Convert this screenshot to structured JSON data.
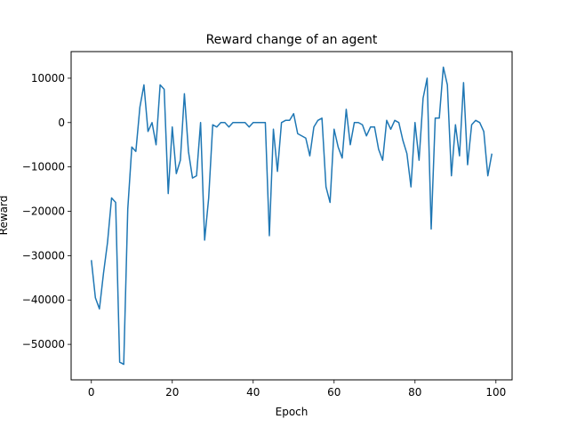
{
  "chart_data": {
    "type": "line",
    "title": "Reward change of an agent",
    "xlabel": "Epoch",
    "ylabel": "Reward",
    "xlim": [
      -5,
      104
    ],
    "ylim": [
      -58000,
      16000
    ],
    "xticks": [
      0,
      20,
      40,
      60,
      80,
      100
    ],
    "xtick_labels": [
      "0",
      "20",
      "40",
      "60",
      "80",
      "100"
    ],
    "yticks": [
      -50000,
      -40000,
      -30000,
      -20000,
      -10000,
      0,
      10000
    ],
    "ytick_labels": [
      "−50000",
      "−40000",
      "−30000",
      "−20000",
      "−10000",
      "0",
      "10000"
    ],
    "grid": false,
    "series": [
      {
        "color": "#1f77b4",
        "x": [
          0,
          1,
          2,
          3,
          4,
          5,
          6,
          7,
          8,
          9,
          10,
          11,
          12,
          13,
          14,
          15,
          16,
          17,
          18,
          19,
          20,
          21,
          22,
          23,
          24,
          25,
          26,
          27,
          28,
          29,
          30,
          31,
          32,
          33,
          34,
          35,
          36,
          37,
          38,
          39,
          40,
          41,
          42,
          43,
          44,
          45,
          46,
          47,
          48,
          49,
          50,
          51,
          52,
          53,
          54,
          55,
          56,
          57,
          58,
          59,
          60,
          61,
          62,
          63,
          64,
          65,
          66,
          67,
          68,
          69,
          70,
          71,
          72,
          73,
          74,
          75,
          76,
          77,
          78,
          79,
          80,
          81,
          82,
          83,
          84,
          85,
          86,
          87,
          88,
          89,
          90,
          91,
          92,
          93,
          94,
          95,
          96,
          97,
          98,
          99
        ],
        "values": [
          -31000,
          -39500,
          -42000,
          -34000,
          -27000,
          -17000,
          -18000,
          -54000,
          -54500,
          -19500,
          -5500,
          -6500,
          3500,
          8500,
          -2000,
          0,
          -5000,
          8500,
          7500,
          -16000,
          -1000,
          -11500,
          -8500,
          6500,
          -6500,
          -12500,
          -12000,
          0,
          -26500,
          -17000,
          -500,
          -1000,
          0,
          0,
          -1000,
          0,
          0,
          0,
          0,
          -1000,
          0,
          0,
          0,
          0,
          -25500,
          -1500,
          -11000,
          0,
          500,
          500,
          2000,
          -2500,
          -3000,
          -3500,
          -7500,
          -1000,
          500,
          1000,
          -14500,
          -18000,
          -1500,
          -5500,
          -8000,
          3000,
          -5000,
          0,
          0,
          -500,
          -3000,
          -1000,
          -1000,
          -6000,
          -8500,
          500,
          -1500,
          500,
          0,
          -4000,
          -7000,
          -14500,
          0,
          -8500,
          5500,
          10000,
          -24000,
          1000,
          1000,
          12500,
          8500,
          -12000,
          -500,
          -7500,
          9000,
          -9500,
          -500,
          500,
          0,
          -2000,
          -12000,
          -7000
        ]
      }
    ]
  }
}
